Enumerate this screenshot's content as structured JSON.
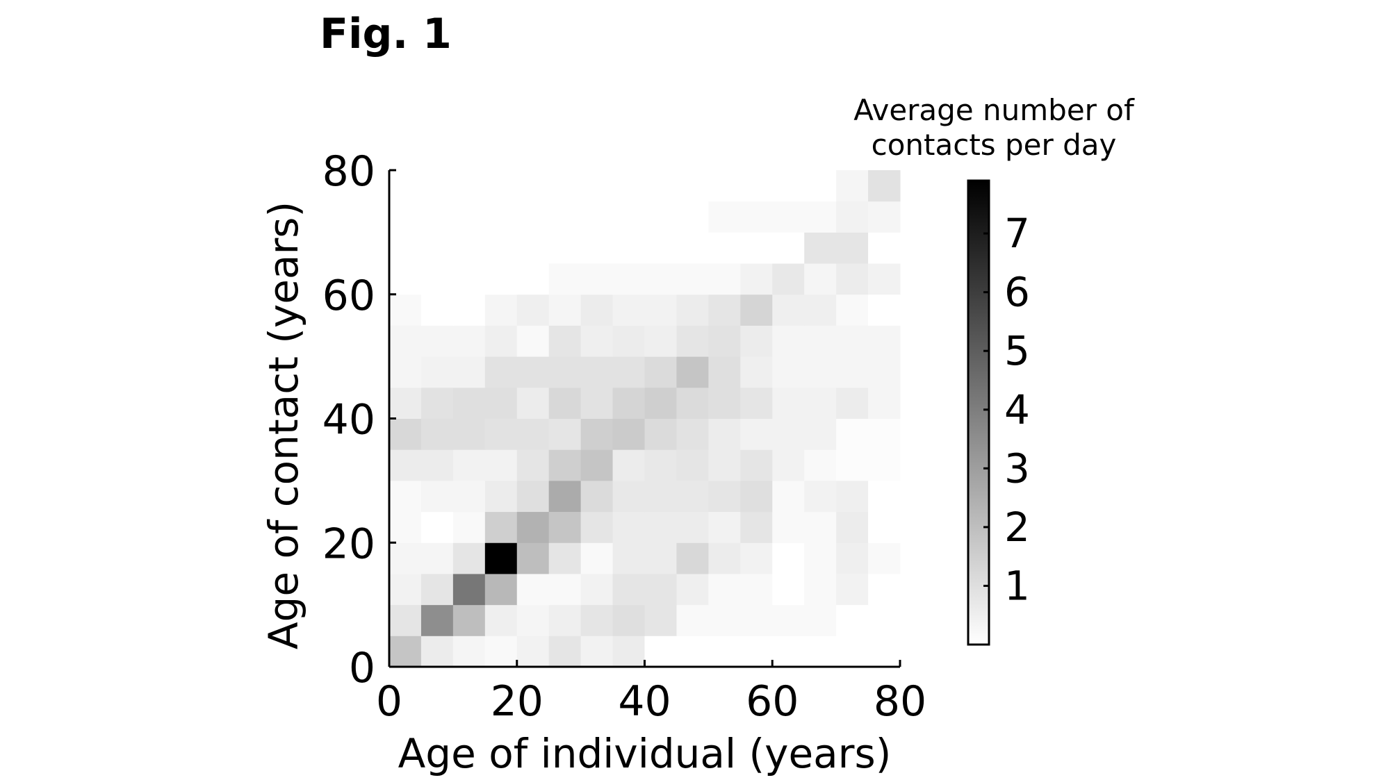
{
  "figure": {
    "label": "Fig. 1"
  },
  "chart_data": {
    "type": "heatmap",
    "title": "",
    "xlabel": "Age of individual (years)",
    "ylabel": "Age of contact (years)",
    "xlim": [
      0,
      80
    ],
    "ylim": [
      0,
      80
    ],
    "xticks": [
      "0",
      "20",
      "40",
      "60",
      "80"
    ],
    "yticks": [
      "0",
      "20",
      "40",
      "60",
      "80"
    ],
    "bin_size_years": 5,
    "colorbar": {
      "title_lines": [
        "Average number of",
        "contacts per day"
      ],
      "ticks": [
        "1",
        "2",
        "3",
        "4",
        "5",
        "6",
        "7"
      ],
      "range": [
        0,
        7.9
      ],
      "colormap": "white-to-black"
    },
    "values_rows_from_age_0": [
      [
        1.8,
        0.6,
        0.3,
        0.2,
        0.4,
        0.8,
        0.4,
        0.6,
        0.0,
        0.0,
        0.0,
        0.0,
        0.0,
        0.0,
        0.0,
        0.0
      ],
      [
        0.8,
        3.5,
        2.0,
        0.5,
        0.3,
        0.5,
        0.8,
        1.0,
        0.8,
        0.2,
        0.2,
        0.2,
        0.2,
        0.2,
        0.0,
        0.0
      ],
      [
        0.4,
        0.8,
        4.2,
        2.2,
        0.2,
        0.2,
        0.4,
        0.8,
        0.8,
        0.5,
        0.2,
        0.2,
        0.0,
        0.2,
        0.4,
        0.0
      ],
      [
        0.3,
        0.3,
        0.8,
        7.9,
        2.0,
        0.8,
        0.2,
        0.6,
        0.6,
        1.2,
        0.6,
        0.4,
        0.0,
        0.2,
        0.5,
        0.2
      ],
      [
        0.2,
        0.0,
        0.2,
        1.5,
        2.4,
        1.8,
        0.8,
        0.6,
        0.6,
        0.6,
        0.4,
        0.8,
        0.2,
        0.2,
        0.6,
        0.0
      ],
      [
        0.2,
        0.3,
        0.3,
        0.6,
        1.0,
        2.6,
        1.1,
        0.7,
        0.7,
        0.7,
        0.8,
        1.0,
        0.2,
        0.4,
        0.5,
        0.0
      ],
      [
        0.6,
        0.6,
        0.4,
        0.4,
        0.8,
        1.5,
        1.8,
        0.6,
        0.7,
        0.8,
        0.6,
        0.8,
        0.4,
        0.2,
        0.1,
        0.1
      ],
      [
        1.2,
        1.0,
        1.0,
        0.9,
        0.9,
        0.8,
        1.5,
        1.6,
        1.1,
        0.9,
        0.6,
        0.4,
        0.4,
        0.4,
        0.1,
        0.1
      ],
      [
        0.6,
        0.9,
        1.0,
        1.0,
        0.6,
        1.2,
        0.9,
        1.3,
        1.5,
        1.1,
        1.0,
        0.8,
        0.4,
        0.4,
        0.6,
        0.3
      ],
      [
        0.3,
        0.4,
        0.4,
        0.9,
        0.9,
        0.9,
        0.9,
        0.9,
        1.1,
        1.8,
        1.0,
        0.5,
        0.3,
        0.3,
        0.3,
        0.3
      ],
      [
        0.3,
        0.3,
        0.3,
        0.5,
        0.2,
        0.8,
        0.5,
        0.6,
        0.5,
        0.8,
        0.9,
        0.6,
        0.3,
        0.3,
        0.3,
        0.3
      ],
      [
        0.2,
        0.0,
        0.0,
        0.3,
        0.5,
        0.3,
        0.6,
        0.4,
        0.4,
        0.6,
        0.8,
        1.3,
        0.5,
        0.5,
        0.2,
        0.0
      ],
      [
        0.0,
        0.0,
        0.0,
        0.0,
        0.0,
        0.2,
        0.2,
        0.2,
        0.2,
        0.2,
        0.2,
        0.4,
        0.7,
        0.3,
        0.6,
        0.4
      ],
      [
        0.0,
        0.0,
        0.0,
        0.0,
        0.0,
        0.0,
        0.0,
        0.0,
        0.0,
        0.0,
        0.0,
        0.0,
        0.0,
        0.8,
        0.8,
        0.0
      ],
      [
        0.0,
        0.0,
        0.0,
        0.0,
        0.0,
        0.0,
        0.0,
        0.0,
        0.0,
        0.0,
        0.2,
        0.2,
        0.2,
        0.2,
        0.4,
        0.3
      ],
      [
        0.0,
        0.0,
        0.0,
        0.0,
        0.0,
        0.0,
        0.0,
        0.0,
        0.0,
        0.0,
        0.0,
        0.0,
        0.0,
        0.0,
        0.3,
        0.9
      ]
    ]
  }
}
